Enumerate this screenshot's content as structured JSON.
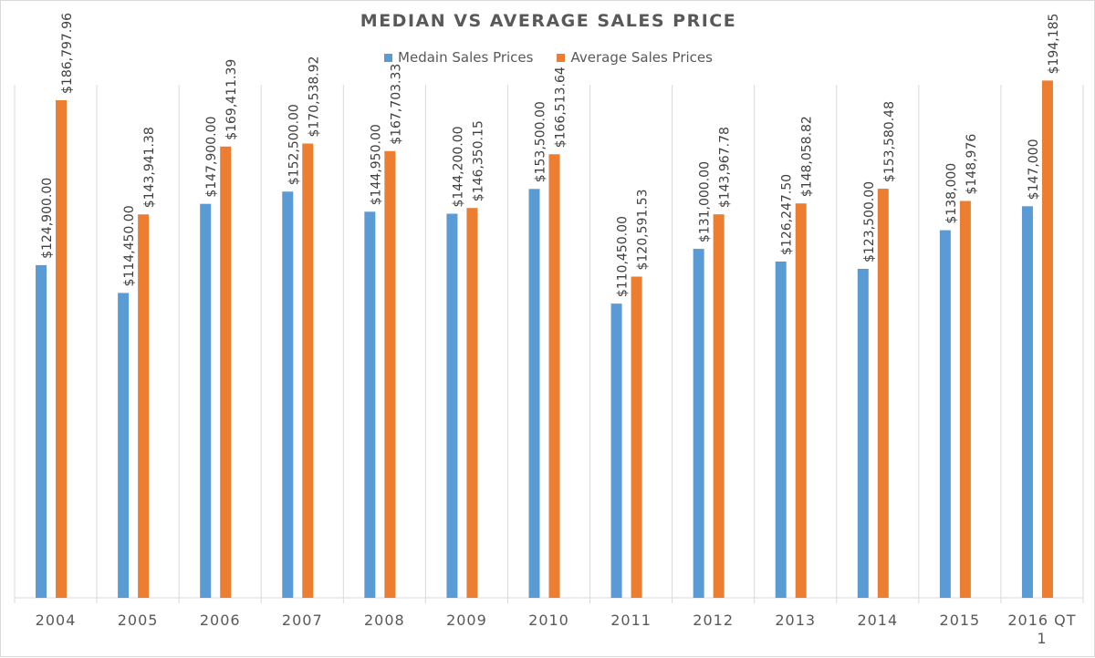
{
  "chart_data": {
    "type": "bar",
    "title": "MEDIAN VS AVERAGE SALES PRICE",
    "categories": [
      "2004",
      "2005",
      "2006",
      "2007",
      "2008",
      "2009",
      "2010",
      "2011",
      "2012",
      "2013",
      "2014",
      "2015",
      "2016 QT 1"
    ],
    "series": [
      {
        "name": "Medain Sales Prices",
        "color": "#5b9bd5",
        "values": [
          124900,
          114450,
          147900,
          152500,
          144950,
          144200,
          153500,
          110450,
          131000,
          126247.5,
          123500,
          138000,
          147000
        ],
        "labels": [
          "$124,900.00",
          "$114,450.00",
          "$147,900.00",
          "$152,500.00",
          "$144,950.00",
          "$144,200.00",
          "$153,500.00",
          "$110,450.00",
          "$131,000.00",
          "$126,247.50",
          "$123,500.00",
          "$138,000",
          "$147,000"
        ]
      },
      {
        "name": "Average Sales Prices",
        "color": "#ed7d31",
        "values": [
          186797.96,
          143941.38,
          169411.39,
          170538.92,
          167703.33,
          146350.15,
          166513.64,
          120591.53,
          143967.78,
          148058.82,
          153580.48,
          148976,
          194185
        ],
        "labels": [
          "$186,797.96",
          "$143,941.38",
          "$169,411.39",
          "$170,538.92",
          "$167,703.33",
          "$146,350.15",
          "$166,513.64",
          "$120,591.53",
          "$143,967.78",
          "$148,058.82",
          "$153,580.48",
          "$148,976",
          "$194,185"
        ]
      }
    ],
    "ylim": [
      0,
      195000
    ],
    "legend_position": "top",
    "grid": "vertical-category-separators",
    "data_labels": "rotated-vertical"
  }
}
